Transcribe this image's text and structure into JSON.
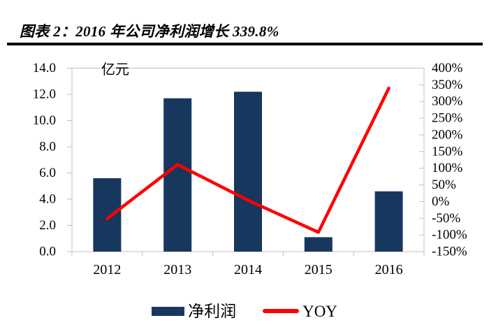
{
  "figure": {
    "caption": "图表 2：2016 年公司净利润增长 339.8%"
  },
  "chart_data": {
    "type": "combo-bar-line",
    "categories": [
      "2012",
      "2013",
      "2014",
      "2015",
      "2016"
    ],
    "series": [
      {
        "name": "净利润",
        "type": "bar",
        "axis": "left",
        "unit": "亿元",
        "values": [
          5.6,
          11.7,
          12.2,
          1.1,
          4.6
        ],
        "color": "#17375E"
      },
      {
        "name": "YOY",
        "type": "line",
        "axis": "right",
        "unit": "%",
        "values": [
          -51,
          111,
          4,
          -92,
          339.8
        ],
        "color": "#FF0000"
      }
    ],
    "left_axis": {
      "label": "亿元",
      "min": 0,
      "max": 14,
      "step": 2,
      "tick_labels": [
        "14.0",
        "12.0",
        "10.0",
        "8.0",
        "6.0",
        "4.0",
        "2.0",
        "0.0"
      ]
    },
    "right_axis": {
      "min": -150,
      "max": 400,
      "step": 50,
      "tick_labels": [
        "400%",
        "350%",
        "300%",
        "250%",
        "200%",
        "150%",
        "100%",
        "50%",
        "0%",
        "-50%",
        "-100%",
        "-150%"
      ]
    },
    "legend": {
      "position": "bottom",
      "entries": [
        "净利润",
        "YOY"
      ]
    },
    "grid": false,
    "annotation_2016_yoy": "339.8%"
  },
  "colors": {
    "bar": "#17375E",
    "line": "#FF0000",
    "axis": "#C0C0C0",
    "text": "#000000",
    "rule": "#000000"
  }
}
